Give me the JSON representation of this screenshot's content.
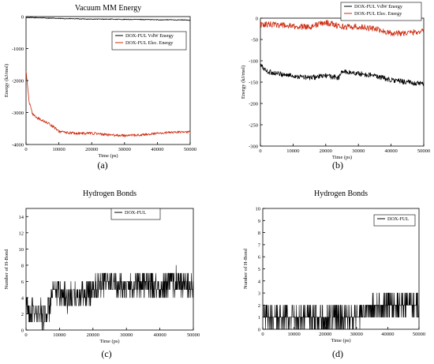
{
  "captions": [
    "(a)",
    "(b)",
    "(c)",
    "(d)"
  ],
  "chart_data": [
    {
      "type": "line",
      "title": "Vacuum MM Energy",
      "xlabel": "Time (ps)",
      "ylabel": "Energy (kJ/mol)",
      "xlim": [
        0,
        50000
      ],
      "ylim": [
        -4000,
        0
      ],
      "xticks": [
        "0",
        "10000",
        "20000",
        "30000",
        "40000",
        "50000"
      ],
      "yticks": [
        "0",
        "-1000",
        "-2000",
        "-3000",
        "-4000"
      ],
      "legend_position": "top-right",
      "series": [
        {
          "name": "DOX-FUL VdW Energy",
          "color": "#000000",
          "x": [
            0,
            5000,
            10000,
            15000,
            20000,
            25000,
            30000,
            35000,
            40000,
            45000,
            50000
          ],
          "y": [
            -30,
            -40,
            -60,
            -70,
            -80,
            -80,
            -90,
            -90,
            -100,
            -100,
            -110
          ]
        },
        {
          "name": "DOX-FUL Elec. Energy",
          "color": "#cc2a0e",
          "x": [
            0,
            1000,
            2000,
            3000,
            5000,
            7000,
            9000,
            10000,
            12000,
            15000,
            20000,
            25000,
            30000,
            35000,
            40000,
            45000,
            50000
          ],
          "y": [
            -1700,
            -2700,
            -3050,
            -3150,
            -3250,
            -3350,
            -3500,
            -3600,
            -3620,
            -3650,
            -3650,
            -3700,
            -3720,
            -3700,
            -3650,
            -3620,
            -3600
          ]
        }
      ]
    },
    {
      "type": "line",
      "title": "",
      "xlabel": "Time (ps)",
      "ylabel": "Energy (kJ/mol)",
      "xlim": [
        0,
        50000
      ],
      "ylim": [
        -300,
        0
      ],
      "xticks": [
        "0",
        "10000",
        "20000",
        "30000",
        "40000",
        "50000"
      ],
      "yticks": [
        "0",
        "-50",
        "-100",
        "-150",
        "-200",
        "-250",
        "-300"
      ],
      "legend_position": "top-right",
      "series": [
        {
          "name": "DOX-FUL VdW Energy",
          "color": "#000000",
          "x": [
            0,
            2000,
            5000,
            10000,
            15000,
            20000,
            24000,
            25000,
            30000,
            35000,
            40000,
            45000,
            50000
          ],
          "y": [
            -110,
            -125,
            -130,
            -135,
            -140,
            -135,
            -140,
            -125,
            -130,
            -135,
            -145,
            -150,
            -155
          ]
        },
        {
          "name": "DOX-FUL Elec. Energy",
          "color": "#cc2a0e",
          "x": [
            0,
            5000,
            10000,
            15000,
            20000,
            25000,
            30000,
            35000,
            40000,
            45000,
            50000
          ],
          "y": [
            -15,
            -15,
            -20,
            -20,
            -10,
            -20,
            -20,
            -25,
            -35,
            -35,
            -30
          ]
        }
      ]
    },
    {
      "type": "line",
      "title": "Hydrogen Bonds",
      "xlabel": "Time (ps)",
      "ylabel": "Number of H-Bond",
      "xlim": [
        0,
        50000
      ],
      "ylim": [
        0,
        15
      ],
      "xticks": [
        "0",
        "10000",
        "20000",
        "30000",
        "40000",
        "50000"
      ],
      "yticks": [
        "0",
        "2",
        "4",
        "6",
        "8",
        "10",
        "12",
        "14"
      ],
      "legend_position": "top-right",
      "series": [
        {
          "name": "DOX-FUL",
          "color": "#000000",
          "x": [
            0,
            2000,
            6000,
            9000,
            12000,
            16000,
            20000,
            22000,
            25000,
            30000,
            35000,
            40000,
            45000,
            50000
          ],
          "y": [
            3,
            2,
            2,
            5,
            4,
            4,
            5,
            6,
            6,
            5,
            6,
            5,
            6,
            5
          ]
        }
      ]
    },
    {
      "type": "line",
      "title": "Hydrogen Bonds",
      "xlabel": "Time (ps)",
      "ylabel": "Number of H-Bond",
      "xlim": [
        0,
        50000
      ],
      "ylim": [
        0,
        10
      ],
      "xticks": [
        "0",
        "10000",
        "20000",
        "30000",
        "40000",
        "50000"
      ],
      "yticks": [
        "0",
        "1",
        "2",
        "3",
        "4",
        "5",
        "6",
        "7",
        "8",
        "9",
        "10"
      ],
      "legend_position": "top-right",
      "series": [
        {
          "name": "DOX-FUL",
          "color": "#000000",
          "x": [
            0,
            5000,
            10000,
            15000,
            20000,
            25000,
            30000,
            35000,
            40000,
            45000,
            50000
          ],
          "y": [
            1,
            1,
            1,
            1,
            1,
            1,
            1,
            2,
            2,
            2,
            2
          ]
        }
      ]
    }
  ]
}
